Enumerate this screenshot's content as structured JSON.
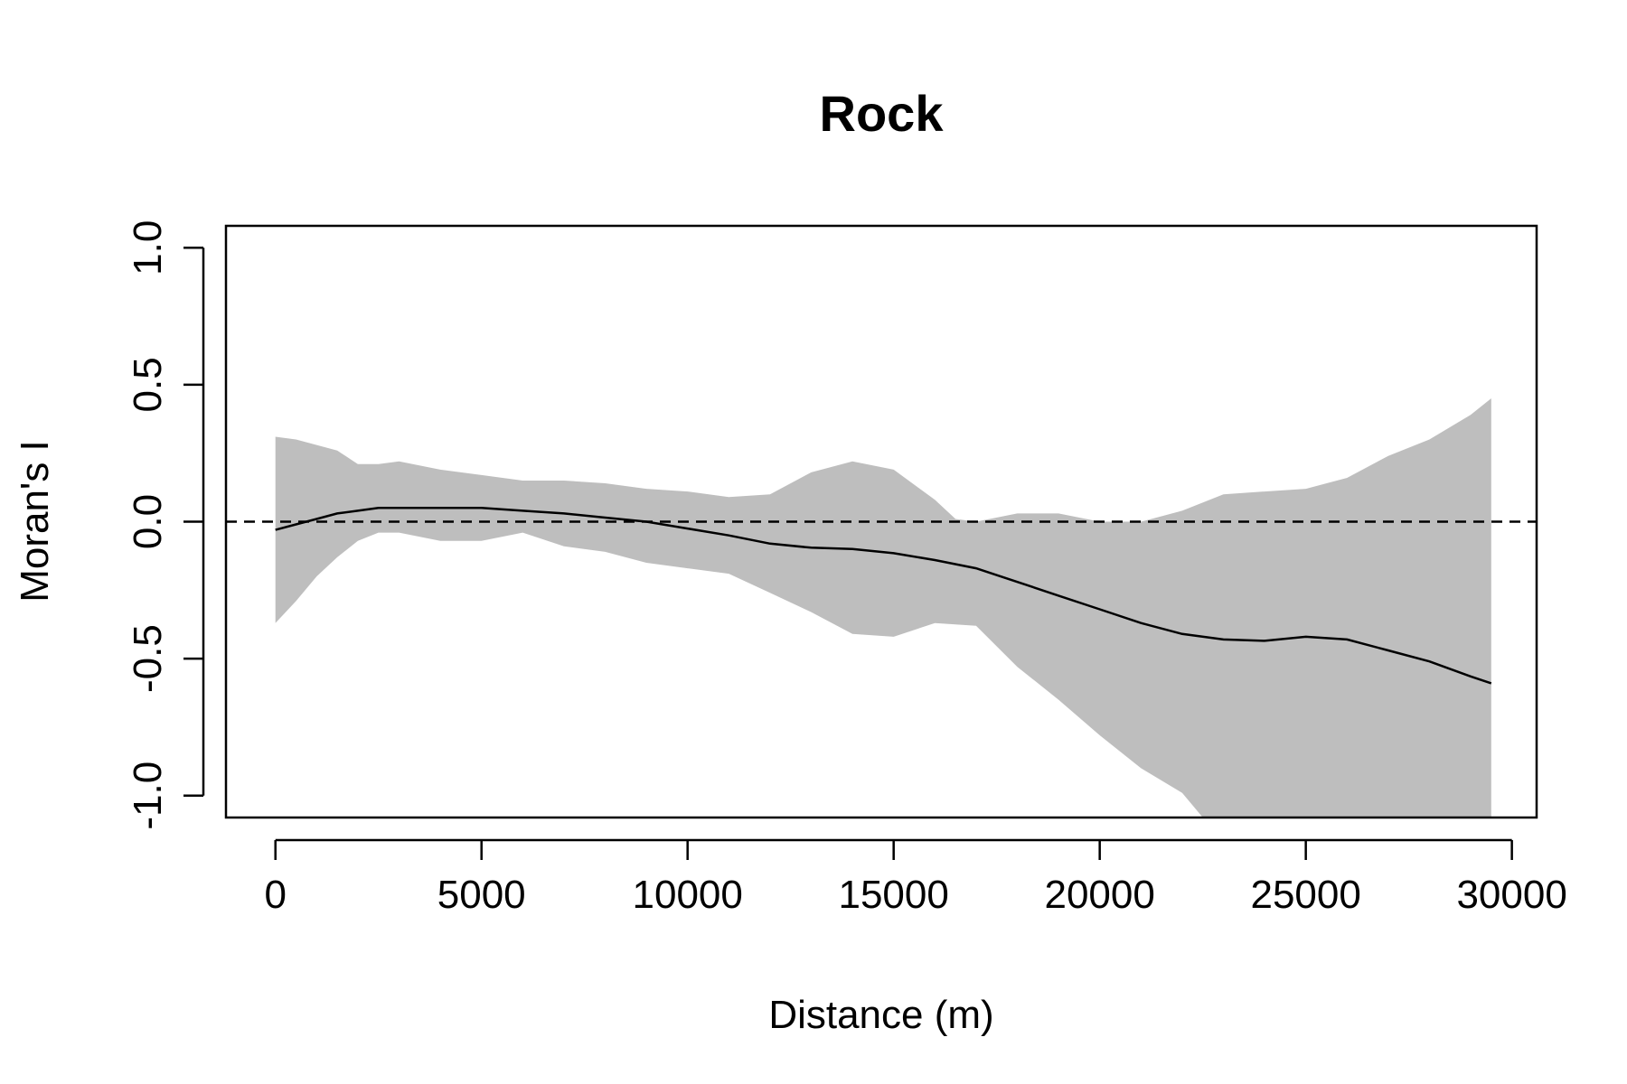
{
  "chart_data": {
    "type": "line",
    "title": "Rock",
    "xlabel": "Distance (m)",
    "ylabel": "Moran's I",
    "xlim": [
      -1200,
      30600
    ],
    "ylim": [
      -1.08,
      1.08
    ],
    "x_ticks": [
      0,
      5000,
      10000,
      15000,
      20000,
      25000,
      30000
    ],
    "x_tick_labels": [
      "0",
      "5000",
      "10000",
      "15000",
      "20000",
      "25000",
      "30000"
    ],
    "y_ticks": [
      -1.0,
      -0.5,
      0.0,
      0.5,
      1.0
    ],
    "y_tick_labels": [
      "-1.0",
      "-0.5",
      "0.0",
      "0.5",
      "1.0"
    ],
    "reference_line": {
      "y": 0.0,
      "style": "dashed"
    },
    "colors": {
      "band": "#bebebe",
      "line": "#000000",
      "axes": "#000000"
    },
    "series": [
      {
        "values": [
          {
            "x": 0,
            "y": -0.03
          },
          {
            "x": 500,
            "y": -0.01
          },
          {
            "x": 1000,
            "y": 0.01
          },
          {
            "x": 1500,
            "y": 0.03
          },
          {
            "x": 2000,
            "y": 0.04
          },
          {
            "x": 2500,
            "y": 0.05
          },
          {
            "x": 3000,
            "y": 0.05
          },
          {
            "x": 4000,
            "y": 0.05
          },
          {
            "x": 5000,
            "y": 0.05
          },
          {
            "x": 6000,
            "y": 0.04
          },
          {
            "x": 7000,
            "y": 0.03
          },
          {
            "x": 8000,
            "y": 0.015
          },
          {
            "x": 9000,
            "y": 0.0
          },
          {
            "x": 10000,
            "y": -0.025
          },
          {
            "x": 11000,
            "y": -0.05
          },
          {
            "x": 12000,
            "y": -0.08
          },
          {
            "x": 13000,
            "y": -0.095
          },
          {
            "x": 14000,
            "y": -0.1
          },
          {
            "x": 15000,
            "y": -0.115
          },
          {
            "x": 16000,
            "y": -0.14
          },
          {
            "x": 17000,
            "y": -0.17
          },
          {
            "x": 18000,
            "y": -0.22
          },
          {
            "x": 19000,
            "y": -0.27
          },
          {
            "x": 20000,
            "y": -0.32
          },
          {
            "x": 21000,
            "y": -0.37
          },
          {
            "x": 22000,
            "y": -0.41
          },
          {
            "x": 23000,
            "y": -0.43
          },
          {
            "x": 24000,
            "y": -0.435
          },
          {
            "x": 25000,
            "y": -0.42
          },
          {
            "x": 26000,
            "y": -0.43
          },
          {
            "x": 27000,
            "y": -0.47
          },
          {
            "x": 28000,
            "y": -0.51
          },
          {
            "x": 29000,
            "y": -0.565
          },
          {
            "x": 29500,
            "y": -0.59
          }
        ]
      }
    ],
    "band": {
      "upper": [
        {
          "x": 0,
          "y": 0.31
        },
        {
          "x": 500,
          "y": 0.3
        },
        {
          "x": 1000,
          "y": 0.28
        },
        {
          "x": 1500,
          "y": 0.26
        },
        {
          "x": 2000,
          "y": 0.21
        },
        {
          "x": 2500,
          "y": 0.21
        },
        {
          "x": 3000,
          "y": 0.22
        },
        {
          "x": 4000,
          "y": 0.19
        },
        {
          "x": 5000,
          "y": 0.17
        },
        {
          "x": 6000,
          "y": 0.15
        },
        {
          "x": 7000,
          "y": 0.15
        },
        {
          "x": 8000,
          "y": 0.14
        },
        {
          "x": 9000,
          "y": 0.12
        },
        {
          "x": 10000,
          "y": 0.11
        },
        {
          "x": 11000,
          "y": 0.09
        },
        {
          "x": 12000,
          "y": 0.1
        },
        {
          "x": 13000,
          "y": 0.18
        },
        {
          "x": 14000,
          "y": 0.22
        },
        {
          "x": 15000,
          "y": 0.19
        },
        {
          "x": 16000,
          "y": 0.08
        },
        {
          "x": 16500,
          "y": 0.01
        },
        {
          "x": 17000,
          "y": 0.0
        },
        {
          "x": 18000,
          "y": 0.03
        },
        {
          "x": 19000,
          "y": 0.03
        },
        {
          "x": 20000,
          "y": 0.0
        },
        {
          "x": 21000,
          "y": 0.0
        },
        {
          "x": 22000,
          "y": 0.04
        },
        {
          "x": 23000,
          "y": 0.1
        },
        {
          "x": 24000,
          "y": 0.11
        },
        {
          "x": 25000,
          "y": 0.12
        },
        {
          "x": 26000,
          "y": 0.16
        },
        {
          "x": 27000,
          "y": 0.24
        },
        {
          "x": 28000,
          "y": 0.3
        },
        {
          "x": 29000,
          "y": 0.39
        },
        {
          "x": 29500,
          "y": 0.45
        }
      ],
      "lower": [
        {
          "x": 0,
          "y": -0.37
        },
        {
          "x": 500,
          "y": -0.29
        },
        {
          "x": 1000,
          "y": -0.2
        },
        {
          "x": 1500,
          "y": -0.13
        },
        {
          "x": 2000,
          "y": -0.07
        },
        {
          "x": 2500,
          "y": -0.04
        },
        {
          "x": 3000,
          "y": -0.04
        },
        {
          "x": 4000,
          "y": -0.07
        },
        {
          "x": 5000,
          "y": -0.07
        },
        {
          "x": 6000,
          "y": -0.04
        },
        {
          "x": 7000,
          "y": -0.09
        },
        {
          "x": 8000,
          "y": -0.11
        },
        {
          "x": 9000,
          "y": -0.15
        },
        {
          "x": 10000,
          "y": -0.17
        },
        {
          "x": 11000,
          "y": -0.19
        },
        {
          "x": 12000,
          "y": -0.26
        },
        {
          "x": 13000,
          "y": -0.33
        },
        {
          "x": 14000,
          "y": -0.41
        },
        {
          "x": 15000,
          "y": -0.42
        },
        {
          "x": 16000,
          "y": -0.37
        },
        {
          "x": 17000,
          "y": -0.38
        },
        {
          "x": 18000,
          "y": -0.53
        },
        {
          "x": 19000,
          "y": -0.65
        },
        {
          "x": 20000,
          "y": -0.78
        },
        {
          "x": 21000,
          "y": -0.9
        },
        {
          "x": 22000,
          "y": -0.99
        },
        {
          "x": 22500,
          "y": -1.08
        },
        {
          "x": 23000,
          "y": -1.08
        },
        {
          "x": 25000,
          "y": -1.08
        },
        {
          "x": 27000,
          "y": -1.08
        },
        {
          "x": 29500,
          "y": -1.08
        }
      ]
    }
  }
}
